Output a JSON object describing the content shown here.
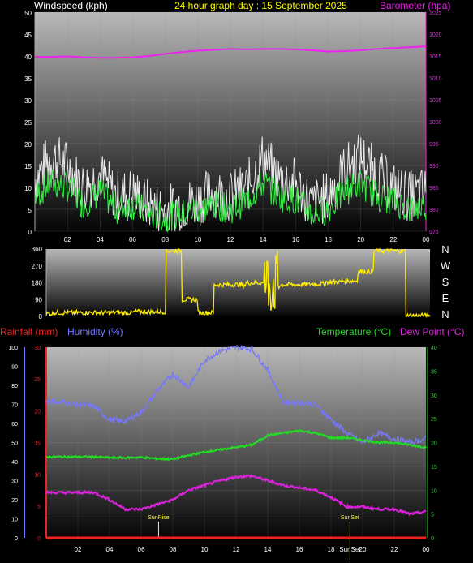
{
  "header": {
    "wind_label": "Windspeed (kph)",
    "date_title": "24 hour graph day : 15 September 2025",
    "baro_label": "Barometer (hpa)"
  },
  "colors": {
    "wind_gust": "#e8e8e8",
    "wind_avg": "#33ee44",
    "barometer": "#ee22ee",
    "direction": "#ffee00",
    "rainfall": "#ee2222",
    "humidity": "#7777ff",
    "temperature": "#22dd22",
    "dewpoint": "#dd22dd",
    "title": "#ffff00"
  },
  "x_ticks": [
    "02",
    "04",
    "06",
    "08",
    "10",
    "12",
    "14",
    "16",
    "18",
    "20",
    "22",
    "00"
  ],
  "bottom_labels": {
    "rainfall": "Rainfall (mm)",
    "humidity": "Humidity (%)",
    "temperature": "Temperature (°C)",
    "dewpoint": "Dew Point (°C)",
    "sunrise": "SunRise",
    "sunset": "SunSet",
    "sunset_axis": "SunSet"
  },
  "chart_data": [
    {
      "type": "line",
      "title": "24 hour graph day : 15 September 2025",
      "ylabel": "Windspeed (kph)",
      "ylabel_right": "Barometer (hpa)",
      "ylim": [
        0,
        50
      ],
      "ylim_right": [
        975,
        1025
      ],
      "yticks": [
        0,
        5,
        10,
        15,
        20,
        25,
        30,
        35,
        40,
        45,
        50
      ],
      "yticks_right": [
        975,
        980,
        985,
        990,
        995,
        1000,
        1005,
        1010,
        1015,
        1020,
        1025
      ],
      "x": [
        0,
        1,
        2,
        3,
        4,
        5,
        6,
        7,
        8,
        9,
        10,
        11,
        12,
        13,
        14,
        15,
        16,
        17,
        18,
        19,
        20,
        21,
        22,
        23,
        24
      ],
      "series": [
        {
          "name": "Windspeed (kph)",
          "role": "gust",
          "values": [
            12,
            17,
            15,
            10,
            13,
            8,
            9,
            6,
            5,
            6,
            7,
            9,
            8,
            10,
            17,
            12,
            11,
            6,
            8,
            14,
            17,
            13,
            10,
            8,
            9
          ]
        },
        {
          "name": "Windspeed (kph)",
          "role": "average",
          "values": [
            8,
            11,
            10,
            6,
            9,
            5,
            6,
            4,
            3,
            4,
            5,
            6,
            5,
            7,
            11,
            8,
            7,
            4,
            5,
            9,
            11,
            8,
            7,
            5,
            6
          ]
        },
        {
          "name": "Barometer (hpa)",
          "values": [
            1014.8,
            1014.8,
            1014.9,
            1014.7,
            1014.6,
            1014.6,
            1014.7,
            1015.0,
            1015.5,
            1015.9,
            1016.2,
            1016.4,
            1016.6,
            1016.5,
            1016.6,
            1016.6,
            1016.5,
            1016.3,
            1016.0,
            1016.1,
            1016.3,
            1016.6,
            1016.8,
            1017.0,
            1017.2
          ]
        }
      ]
    },
    {
      "type": "line",
      "title": "",
      "yticks": [
        0,
        90,
        180,
        270,
        360
      ],
      "compass_labels": [
        "N",
        "W",
        "S",
        "E",
        "N"
      ],
      "ylim": [
        0,
        360
      ],
      "x": [
        0,
        1,
        2,
        3,
        4,
        5,
        6,
        7,
        8,
        9,
        10,
        11,
        12,
        13,
        14,
        15,
        16,
        17,
        18,
        19,
        20,
        21,
        22,
        23,
        24
      ],
      "series": [
        {
          "name": "Wind direction",
          "values": [
            15,
            20,
            20,
            20,
            20,
            20,
            25,
            25,
            350,
            90,
            20,
            170,
            170,
            180,
            180,
            170,
            170,
            175,
            185,
            190,
            240,
            350,
            350,
            5,
            5
          ]
        }
      ]
    },
    {
      "type": "line",
      "ylim_left_rain": [
        0,
        30
      ],
      "yticks_rain": [
        0,
        5,
        10,
        15,
        20,
        25,
        30
      ],
      "ylim_left_humidity": [
        0,
        100
      ],
      "yticks_humidity": [
        0,
        10,
        20,
        30,
        40,
        50,
        60,
        70,
        80,
        90,
        100
      ],
      "ylim_right": [
        0,
        40
      ],
      "yticks_right": [
        0,
        5,
        10,
        15,
        20,
        25,
        30,
        35,
        40
      ],
      "x": [
        0,
        1,
        2,
        3,
        4,
        5,
        6,
        7,
        8,
        9,
        10,
        11,
        12,
        13,
        14,
        15,
        16,
        17,
        18,
        19,
        20,
        21,
        22,
        23,
        24
      ],
      "sunrise_hour": 7.1,
      "sunset_hour": 19.2,
      "series": [
        {
          "name": "Rainfall (mm)",
          "values": [
            0,
            0,
            0,
            0,
            0,
            0,
            0,
            0,
            0,
            0,
            0,
            0,
            0,
            0,
            0,
            0,
            0,
            0,
            0,
            0,
            0,
            0,
            0,
            0,
            0
          ]
        },
        {
          "name": "Humidity (%)",
          "values": [
            72,
            71,
            70,
            69,
            62,
            61,
            66,
            77,
            86,
            79,
            93,
            98,
            100,
            99,
            88,
            71,
            71,
            70,
            62,
            55,
            50,
            55,
            52,
            50,
            52
          ]
        },
        {
          "name": "Temperature (°C)",
          "values": [
            17,
            17,
            17,
            17,
            16.8,
            16.8,
            16.9,
            16.6,
            16.5,
            17.3,
            18,
            18.5,
            19,
            19.5,
            21.5,
            22,
            22.5,
            22,
            21,
            21,
            20.5,
            20,
            20,
            19.5,
            19
          ]
        },
        {
          "name": "Dew Point (°C)",
          "values": [
            9.5,
            9.5,
            9.5,
            9.5,
            8,
            6,
            6,
            7,
            8,
            10,
            11,
            12,
            12.8,
            13,
            12,
            11,
            10.5,
            10,
            8.5,
            6.5,
            6.5,
            6,
            6,
            5,
            5.5
          ]
        }
      ]
    }
  ]
}
